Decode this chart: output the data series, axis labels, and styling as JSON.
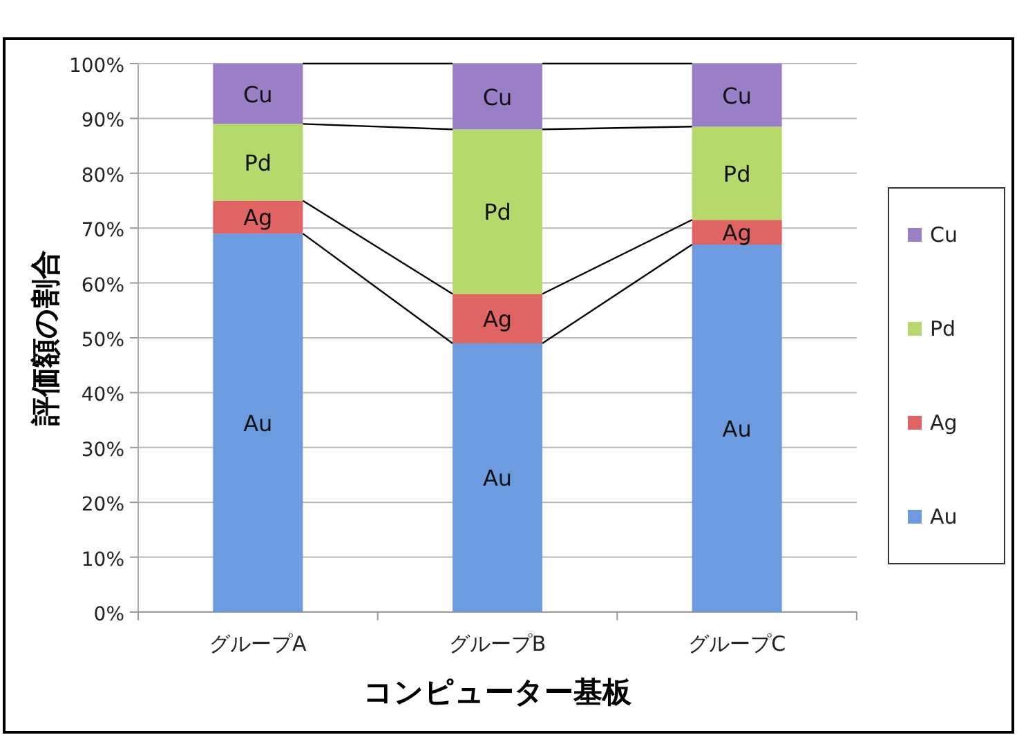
{
  "chart_data": {
    "type": "bar",
    "stacked": true,
    "xlabel": "コンピューター基板",
    "ylabel": "評価額の割合",
    "categories": [
      "グループA",
      "グループB",
      "グループC"
    ],
    "series": [
      {
        "name": "Au",
        "color": "#6c9be0",
        "values": [
          69,
          49,
          67
        ],
        "value_labels": [
          "Au",
          "Au",
          "Au"
        ]
      },
      {
        "name": "Ag",
        "color": "#e06464",
        "values": [
          6,
          9,
          4.5
        ],
        "value_labels": [
          "Ag",
          "Ag",
          "Ag"
        ]
      },
      {
        "name": "Pd",
        "color": "#b6d96c",
        "values": [
          14,
          30,
          17
        ],
        "value_labels": [
          "Pd",
          "Pd",
          "Pd"
        ]
      },
      {
        "name": "Cu",
        "color": "#9b7fc6",
        "values": [
          11,
          12,
          11.5
        ],
        "value_labels": [
          "Cu",
          "Cu",
          "Cu"
        ]
      }
    ],
    "ylim": [
      0,
      100
    ],
    "yticks": [
      {
        "value": 0,
        "label": "0%"
      },
      {
        "value": 10,
        "label": "10%"
      },
      {
        "value": 20,
        "label": "20%"
      },
      {
        "value": 30,
        "label": "30%"
      },
      {
        "value": 40,
        "label": "40%"
      },
      {
        "value": 50,
        "label": "50%"
      },
      {
        "value": 60,
        "label": "60%"
      },
      {
        "value": 70,
        "label": "70%"
      },
      {
        "value": 80,
        "label": "80%"
      },
      {
        "value": 90,
        "label": "90%"
      },
      {
        "value": 100,
        "label": "100%"
      }
    ],
    "grid": "y",
    "legend": "right"
  }
}
